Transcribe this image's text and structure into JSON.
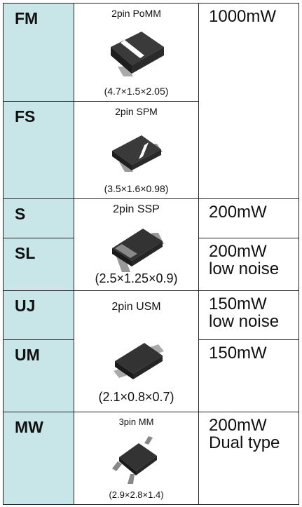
{
  "table": {
    "codes": [
      "FM",
      "FS",
      "S",
      "SL",
      "UJ",
      "UM",
      "MW"
    ],
    "packages": [
      {
        "name": "2pin PoMM",
        "size": "(4.7×1.5×2.05)"
      },
      {
        "name": "2pin SPM",
        "size": "(3.5×1.6×0.98)"
      },
      {
        "name": "2pin SSP",
        "size": "(2.5×1.25×0.9)"
      },
      {
        "name": "2pin USM",
        "size": "(2.1×0.8×0.7)"
      },
      {
        "name": "3pin MM",
        "size": "(2.9×2.8×1.4)"
      }
    ],
    "power": [
      [
        "1000mW"
      ],
      [
        "200mW"
      ],
      [
        "200mW",
        "low noise"
      ],
      [
        "150mW",
        "low noise"
      ],
      [
        "150mW"
      ],
      [
        "200mW",
        "Dual type"
      ]
    ]
  }
}
